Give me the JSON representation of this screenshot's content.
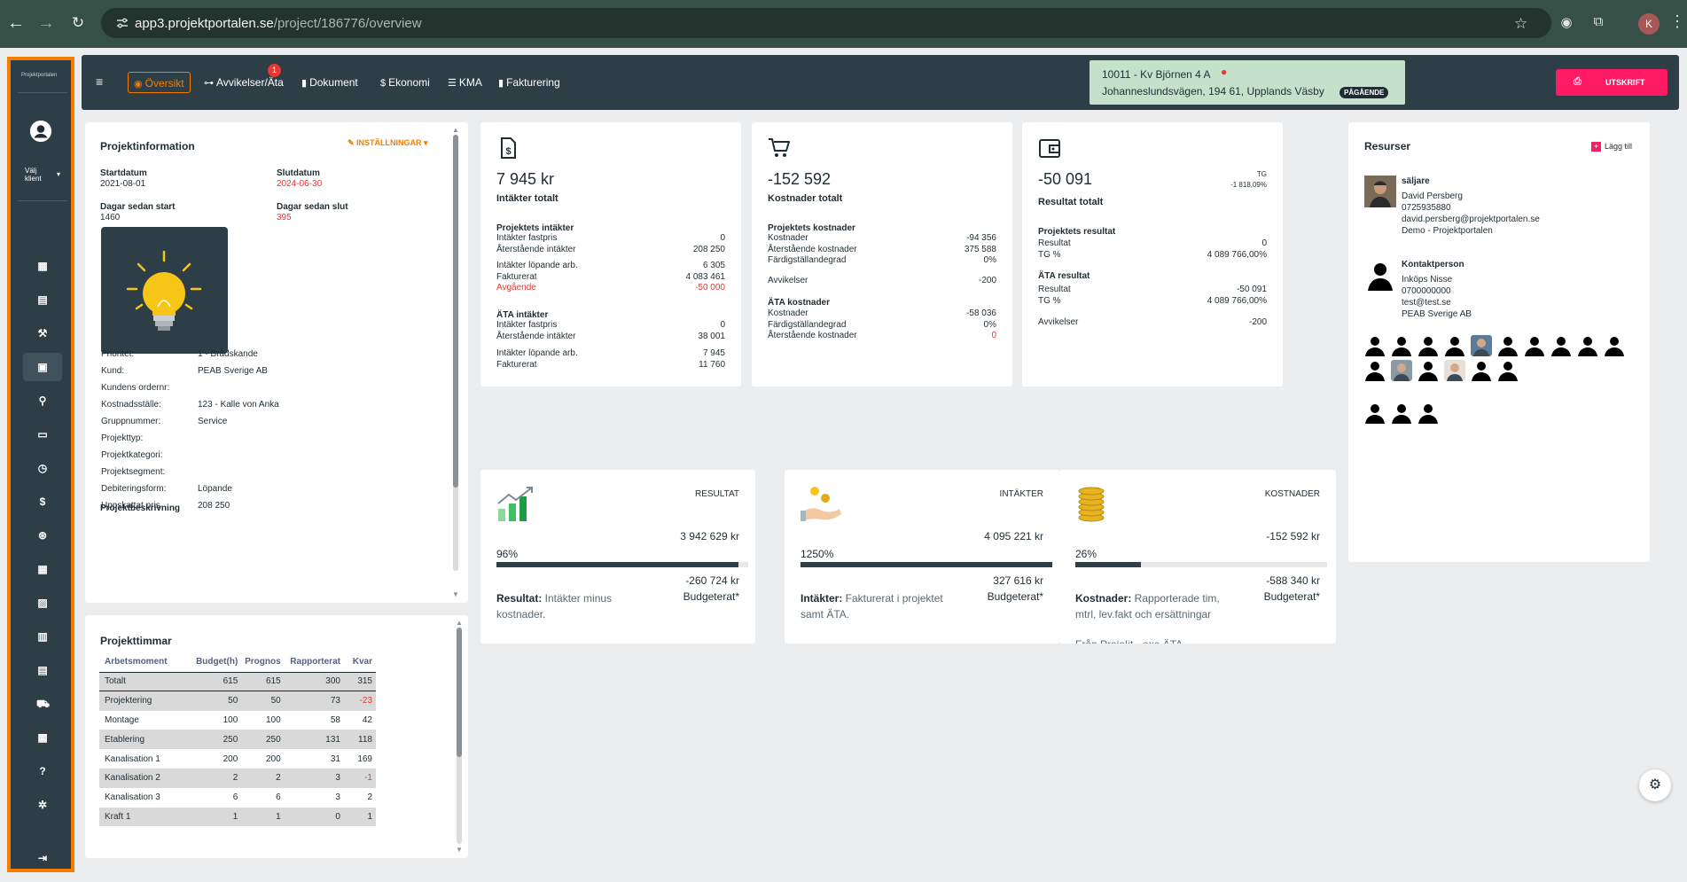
{
  "browser": {
    "url_host": "app3.projektportalen.se",
    "url_path": "/project/186776/overview",
    "profile_initial": "K"
  },
  "sidebar": {
    "logo_text": "Projektportalen",
    "client_label": "Välj klient",
    "icons": [
      "dashboard-icon",
      "chat-icon",
      "gavel-icon",
      "widgets-icon",
      "wrench-icon",
      "note-icon",
      "clock-icon",
      "dollar-icon",
      "money-icon",
      "apps-icon",
      "image-icon",
      "calendar-icon",
      "event-icon",
      "cart-icon",
      "report-icon",
      "help-icon",
      "settings-icon",
      "logout-icon"
    ]
  },
  "topbar": {
    "tabs": [
      "Översikt",
      "Avvikelser/Äta",
      "Dokument",
      "Ekonomi",
      "KMA",
      "Fakturering"
    ],
    "avvikelser_badge": "1",
    "project_line1": "10011 - Kv Björnen 4 A",
    "project_line2": "Johanneslundsvägen, 194 61, Upplands Väsby",
    "project_status": "PÅGÅENDE",
    "print_label": "UTSKRIFT"
  },
  "projektinfo": {
    "title": "Projektinformation",
    "settings_label": "INSTÄLLNINGAR",
    "startdatum_label": "Startdatum",
    "startdatum": "2021-08-01",
    "slutdatum_label": "Slutdatum",
    "slutdatum": "2024-06-30",
    "dagar_start_label": "Dagar sedan start",
    "dagar_start": "1460",
    "dagar_slut_label": "Dagar sedan slut",
    "dagar_slut": "395",
    "rows": [
      {
        "k": "Prioritet:",
        "v": "1 - Brådskande"
      },
      {
        "k": "Kund:",
        "v": "PEAB Sverige AB"
      },
      {
        "k": "Kundens ordernr:",
        "v": ""
      },
      {
        "k": "Kostnadsställe:",
        "v": "123 - Kalle von Anka"
      },
      {
        "k": "Gruppnummer:",
        "v": "Service"
      },
      {
        "k": "Projekttyp:",
        "v": ""
      },
      {
        "k": "Projektkategori:",
        "v": ""
      },
      {
        "k": "Projektsegment:",
        "v": ""
      },
      {
        "k": "Debiteringsform:",
        "v": "Löpande"
      },
      {
        "k": "Uppskattat pris",
        "v": "208 250"
      }
    ],
    "beskrivning_label": "Projektbeskrivning"
  },
  "projekttimmar": {
    "title": "Projekttimmar",
    "headers": [
      "Arbetsmoment",
      "Budget(h)",
      "Prognos",
      "Rapporterat",
      "Kvar"
    ],
    "rows": [
      [
        "Totalt",
        "615",
        "615",
        "300",
        "315"
      ],
      [
        "Projektering",
        "50",
        "50",
        "73",
        "-23"
      ],
      [
        "Montage",
        "100",
        "100",
        "58",
        "42"
      ],
      [
        "Etablering",
        "250",
        "250",
        "131",
        "118"
      ],
      [
        "Kanalisation 1",
        "200",
        "200",
        "31",
        "169"
      ],
      [
        "Kanalisation 2",
        "2",
        "2",
        "3",
        "-1"
      ],
      [
        "Kanalisation 3",
        "6",
        "6",
        "3",
        "2"
      ],
      [
        "Kraft 1",
        "1",
        "1",
        "0",
        "1"
      ]
    ]
  },
  "intakter": {
    "value": "7 945 kr",
    "label": "Intäkter totalt",
    "sec1": "Projektets intäkter",
    "rows1": [
      {
        "k": "Intäkter fastpris",
        "v": "0"
      },
      {
        "k": "Återstående intäkter",
        "v": "208 250"
      }
    ],
    "rows2": [
      {
        "k": "Intäkter löpande arb.",
        "v": "6 305"
      },
      {
        "k": "Fakturerat",
        "v": "4 083 461"
      },
      {
        "k": "Avgående",
        "v": "-50 000"
      }
    ],
    "sec2": "ÄTA intäkter",
    "rows3": [
      {
        "k": "Intäkter fastpris",
        "v": "0"
      },
      {
        "k": "Återstående intäkter",
        "v": "38 001"
      }
    ],
    "rows4": [
      {
        "k": "Intäkter löpande arb.",
        "v": "7 945"
      },
      {
        "k": "Fakturerat",
        "v": "11 760"
      }
    ]
  },
  "kostnader": {
    "value": "-152 592",
    "label": "Kostnader totalt",
    "sec1": "Projektets kostnader",
    "rows1": [
      {
        "k": "Kostnader",
        "v": "-94 356"
      },
      {
        "k": "Återstående kostnader",
        "v": "375 588"
      },
      {
        "k": "Färdigställandegrad",
        "v": "0%"
      }
    ],
    "rows2": [
      {
        "k": "Avvikelser",
        "v": "-200"
      }
    ],
    "sec2": "ÄTA kostnader",
    "rows3": [
      {
        "k": "Kostnader",
        "v": "-58 036"
      },
      {
        "k": "Färdigställandegrad",
        "v": "0%"
      },
      {
        "k": "Återstående kostnader",
        "v": "0"
      }
    ]
  },
  "resultat": {
    "value": "-50 091",
    "label": "Resultat totalt",
    "tg_label": "TG",
    "tg_value": "-1 818,09%",
    "sec1": "Projektets resultat",
    "rows1": [
      {
        "k": "Resultat",
        "v": "0"
      },
      {
        "k": "TG %",
        "v": "4 089 766,00%"
      }
    ],
    "sec2": "ÄTA resultat",
    "rows2": [
      {
        "k": "Resultat",
        "v": "-50 091"
      },
      {
        "k": "TG %",
        "v": "4 089 766,00%"
      }
    ],
    "rows3": [
      {
        "k": "Avvikelser",
        "v": "-200"
      }
    ]
  },
  "kpis": [
    {
      "title": "RESULTAT",
      "value": "3 942 629 kr",
      "percent": "96%",
      "fill": 0.96,
      "value2": "-260 724 kr",
      "budget": "Budgeterat*",
      "desc_bold": "Resultat:",
      "desc": " Intäkter minus kostnader."
    },
    {
      "title": "INTÄKTER",
      "value": "4 095 221 kr",
      "percent": "1250%",
      "fill": 1.0,
      "value2": "327 616 kr",
      "budget": "Budgeterat*",
      "desc_bold": "Intäkter:",
      "desc": " Fakturerat i projektet samt ÄTA."
    },
    {
      "title": "KOSTNADER",
      "value": "-152 592 kr",
      "percent": "26%",
      "fill": 0.26,
      "value2": "-588 340 kr",
      "budget": "Budgeterat*",
      "desc_bold": "Kostnader:",
      "desc": " Rapporterade tim, mtrl, lev.fakt och ersättningar"
    }
  ],
  "kpi_cutoff": "Från Projekt - exe ÄTA",
  "resurser": {
    "title": "Resurser",
    "add_label": "Lägg till",
    "seller_role": "säljare",
    "seller_name": "David Persberg",
    "seller_phone": "0725935880",
    "seller_email": "david.persberg@projektportalen.se",
    "seller_org": "Demo - Projektportalen",
    "contact_role": "Kontaktperson",
    "contact_name": "Inköps Nisse",
    "contact_phone": "0700000000",
    "contact_email": "test@test.se",
    "contact_org": "PEAB Sverige AB"
  },
  "colors": {
    "accent": "#f57c00",
    "primary": "#2d3e46",
    "danger": "#e53935",
    "print": "#ff1a64",
    "status_bg": "#c5e1cb"
  }
}
